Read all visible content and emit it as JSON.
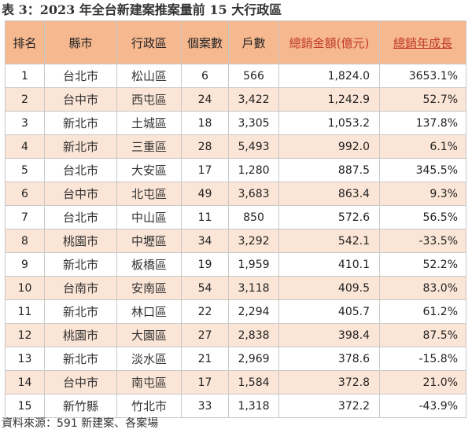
{
  "title": "表 3：2023 年全台新建案推案量前 15 大行政區",
  "headers": [
    "排名",
    "縣市",
    "行政區",
    "個案數",
    "戶數",
    "總銷金額(億元)",
    "總銷年成長"
  ],
  "rows": [
    {
      "rank": "1",
      "city": "台北市",
      "district": "松山區",
      "projects": "6",
      "units": "566",
      "sales": "1,824.0",
      "growth": "3653.1%"
    },
    {
      "rank": "2",
      "city": "台中市",
      "district": "西屯區",
      "projects": "24",
      "units": "3,422",
      "sales": "1,242.9",
      "growth": "52.7%"
    },
    {
      "rank": "3",
      "city": "新北市",
      "district": "土城區",
      "projects": "18",
      "units": "3,305",
      "sales": "1,053.2",
      "growth": "137.8%"
    },
    {
      "rank": "4",
      "city": "新北市",
      "district": "三重區",
      "projects": "28",
      "units": "5,493",
      "sales": "992.0",
      "growth": "6.1%"
    },
    {
      "rank": "5",
      "city": "台北市",
      "district": "大安區",
      "projects": "17",
      "units": "1,280",
      "sales": "887.5",
      "growth": "345.5%"
    },
    {
      "rank": "6",
      "city": "台中市",
      "district": "北屯區",
      "projects": "49",
      "units": "3,683",
      "sales": "863.4",
      "growth": "9.3%"
    },
    {
      "rank": "7",
      "city": "台北市",
      "district": "中山區",
      "projects": "11",
      "units": "850",
      "sales": "572.6",
      "growth": "56.5%"
    },
    {
      "rank": "8",
      "city": "桃園市",
      "district": "中壢區",
      "projects": "34",
      "units": "3,292",
      "sales": "542.1",
      "growth": "-33.5%"
    },
    {
      "rank": "9",
      "city": "新北市",
      "district": "板橋區",
      "projects": "19",
      "units": "1,959",
      "sales": "410.1",
      "growth": "52.2%"
    },
    {
      "rank": "10",
      "city": "台南市",
      "district": "安南區",
      "projects": "54",
      "units": "3,118",
      "sales": "409.5",
      "growth": "83.0%"
    },
    {
      "rank": "11",
      "city": "新北市",
      "district": "林口區",
      "projects": "22",
      "units": "2,294",
      "sales": "405.7",
      "growth": "61.2%"
    },
    {
      "rank": "12",
      "city": "桃園市",
      "district": "大園區",
      "projects": "27",
      "units": "2,838",
      "sales": "398.4",
      "growth": "87.5%"
    },
    {
      "rank": "13",
      "city": "新北市",
      "district": "淡水區",
      "projects": "21",
      "units": "2,969",
      "sales": "378.6",
      "growth": "-15.8%"
    },
    {
      "rank": "14",
      "city": "台中市",
      "district": "南屯區",
      "projects": "17",
      "units": "1,584",
      "sales": "372.8",
      "growth": "21.0%"
    },
    {
      "rank": "15",
      "city": "新竹縣",
      "district": "竹北市",
      "projects": "33",
      "units": "1,318",
      "sales": "372.2",
      "growth": "-43.9%"
    }
  ],
  "source": "資料來源：591 新建案、各案場",
  "colors": {
    "header_bg": "#f6b88f",
    "stripe_bg": "#fbe5d6",
    "accent": "#c0392b"
  }
}
